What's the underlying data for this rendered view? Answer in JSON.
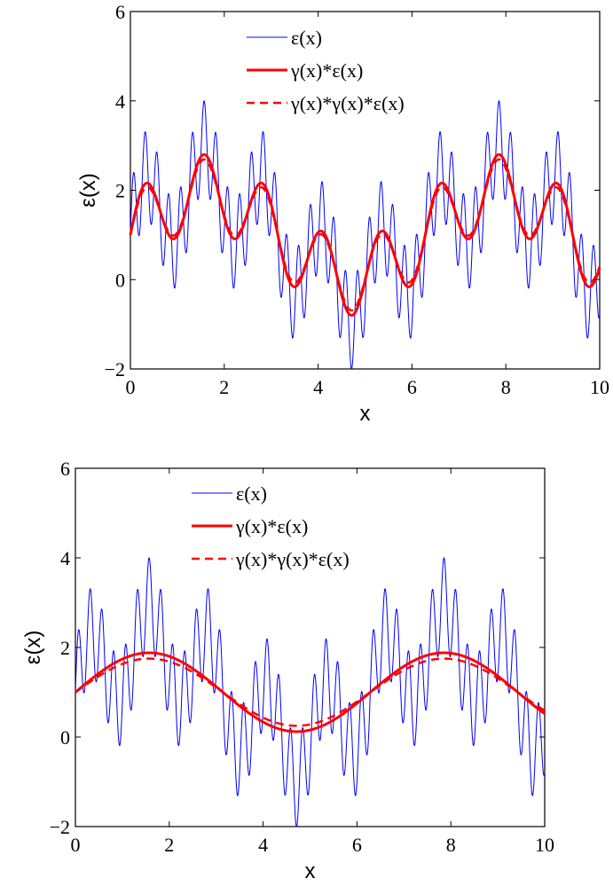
{
  "chart_data": [
    {
      "type": "line",
      "title": "",
      "xlabel": "x",
      "ylabel": "ε(x)",
      "xlim": [
        0,
        10
      ],
      "ylim": [
        -2,
        6
      ],
      "xticks": [
        "0",
        "2",
        "4",
        "6",
        "8",
        "10"
      ],
      "yticks": [
        "−2",
        "0",
        "2",
        "4",
        "6"
      ],
      "grid": false,
      "legend_position": "top-center",
      "series": [
        {
          "name": "ε(x)",
          "color": "#0000ff",
          "style": "solid",
          "formula": "1 + sin(x) + sin(5x) + sin(25x)"
        },
        {
          "name": "γ(x)*ε(x)",
          "color": "#ff0000",
          "style": "solid",
          "formula": "1 + 0.95 sin(x) + 0.85 sin(5x)"
        },
        {
          "name": "γ(x)*γ(x)*ε(x)",
          "color": "#ff0000",
          "style": "dashed",
          "formula": "1 + 0.93 sin(x) + 0.76 sin(5x)"
        }
      ]
    },
    {
      "type": "line",
      "title": "",
      "xlabel": "x",
      "ylabel": "ε(x)",
      "xlim": [
        0,
        10
      ],
      "ylim": [
        -2,
        6
      ],
      "xticks": [
        "0",
        "2",
        "4",
        "6",
        "8",
        "10"
      ],
      "yticks": [
        "−2",
        "0",
        "2",
        "4",
        "6"
      ],
      "grid": false,
      "legend_position": "top-center",
      "series": [
        {
          "name": "ε(x)",
          "color": "#0000ff",
          "style": "solid",
          "formula": "1 + sin(x) + sin(5x) + sin(25x)"
        },
        {
          "name": "γ(x)*ε(x)",
          "color": "#ff0000",
          "style": "solid",
          "formula": "1 + 0.88 sin(x)"
        },
        {
          "name": "γ(x)*γ(x)*ε(x)",
          "color": "#ff0000",
          "style": "dashed",
          "formula": "1 + 0.75 sin(x)"
        }
      ]
    }
  ]
}
